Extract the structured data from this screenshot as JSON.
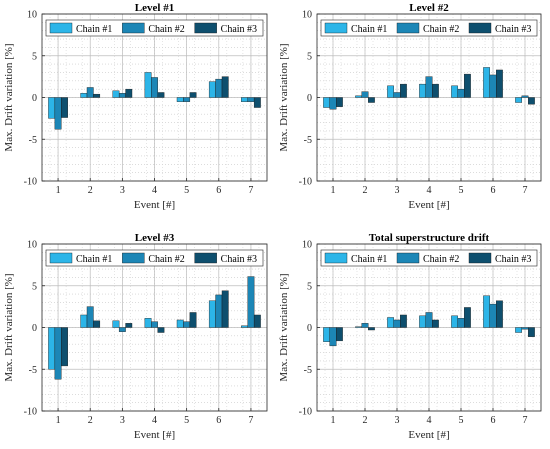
{
  "chart_data": [
    {
      "type": "bar",
      "title": "Level #1",
      "xlabel": "Event [#]",
      "ylabel": "Max. Drift variation [%]",
      "categories": [
        "1",
        "2",
        "3",
        "4",
        "5",
        "6",
        "7"
      ],
      "ylim": [
        -10,
        10
      ],
      "yticks": [
        10,
        5,
        0,
        -5,
        -10
      ],
      "grid": true,
      "legend_position": "top",
      "series": [
        {
          "name": "Chain #1",
          "color": "#2cb5e8",
          "values": [
            -2.5,
            0.5,
            0.8,
            3.0,
            -0.5,
            1.9,
            -0.5
          ]
        },
        {
          "name": "Chain #2",
          "color": "#1c86b6",
          "values": [
            -3.8,
            1.2,
            0.5,
            2.4,
            -0.5,
            2.2,
            -0.5
          ]
        },
        {
          "name": "Chain #3",
          "color": "#0e4f6e",
          "values": [
            -2.4,
            0.4,
            1.0,
            0.6,
            0.6,
            2.5,
            -1.2
          ]
        }
      ]
    },
    {
      "type": "bar",
      "title": "Level #2",
      "xlabel": "Event [#]",
      "ylabel": "Max. Drift variation [%]",
      "categories": [
        "1",
        "2",
        "3",
        "4",
        "5",
        "6",
        "7"
      ],
      "ylim": [
        -10,
        10
      ],
      "yticks": [
        10,
        5,
        0,
        -5,
        -10
      ],
      "grid": true,
      "legend_position": "top",
      "series": [
        {
          "name": "Chain #1",
          "color": "#2cb5e8",
          "values": [
            -1.2,
            0.2,
            1.4,
            1.6,
            1.4,
            3.6,
            -0.6
          ]
        },
        {
          "name": "Chain #2",
          "color": "#1c86b6",
          "values": [
            -1.4,
            0.7,
            0.6,
            2.5,
            1.0,
            2.7,
            0.2
          ]
        },
        {
          "name": "Chain #3",
          "color": "#0e4f6e",
          "values": [
            -1.1,
            -0.6,
            1.6,
            1.6,
            2.8,
            3.3,
            -0.8
          ]
        }
      ]
    },
    {
      "type": "bar",
      "title": "Level #3",
      "xlabel": "Event [#]",
      "ylabel": "Max. Drift variation [%]",
      "categories": [
        "1",
        "2",
        "3",
        "4",
        "5",
        "6",
        "7"
      ],
      "ylim": [
        -10,
        10
      ],
      "yticks": [
        10,
        5,
        0,
        -5,
        -10
      ],
      "grid": true,
      "legend_position": "top",
      "series": [
        {
          "name": "Chain #1",
          "color": "#2cb5e8",
          "values": [
            -5.0,
            1.5,
            0.8,
            1.1,
            0.9,
            3.2,
            0.2
          ]
        },
        {
          "name": "Chain #2",
          "color": "#1c86b6",
          "values": [
            -6.2,
            2.5,
            -0.5,
            0.7,
            0.7,
            3.9,
            6.1
          ]
        },
        {
          "name": "Chain #3",
          "color": "#0e4f6e",
          "values": [
            -4.6,
            0.8,
            0.5,
            -0.6,
            1.8,
            4.4,
            1.5
          ]
        }
      ]
    },
    {
      "type": "bar",
      "title": "Total superstructure drift",
      "xlabel": "Event [#]",
      "ylabel": "Max. Drift variation [%]",
      "categories": [
        "1",
        "2",
        "3",
        "4",
        "5",
        "6",
        "7"
      ],
      "ylim": [
        -10,
        10
      ],
      "yticks": [
        10,
        5,
        0,
        -5,
        -10
      ],
      "grid": true,
      "legend_position": "top",
      "series": [
        {
          "name": "Chain #1",
          "color": "#2cb5e8",
          "values": [
            -1.7,
            0.1,
            1.2,
            1.4,
            1.4,
            3.8,
            -0.6
          ]
        },
        {
          "name": "Chain #2",
          "color": "#1c86b6",
          "values": [
            -2.2,
            0.5,
            0.9,
            1.8,
            1.1,
            2.8,
            -0.2
          ]
        },
        {
          "name": "Chain #3",
          "color": "#0e4f6e",
          "values": [
            -1.6,
            -0.3,
            1.5,
            0.9,
            2.4,
            3.2,
            -1.1
          ]
        }
      ]
    }
  ]
}
